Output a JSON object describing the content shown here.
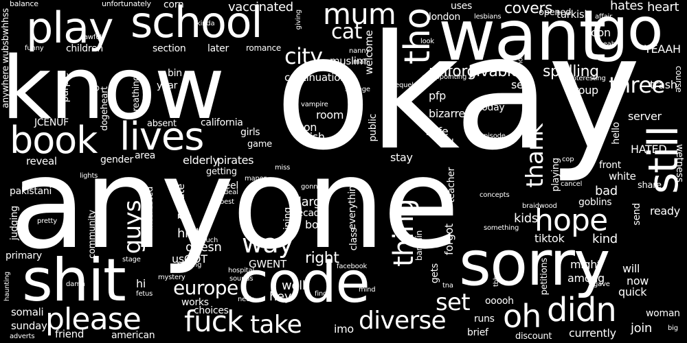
{
  "words": [
    {
      "text": "okay"
    },
    {
      "text": "anyone"
    },
    {
      "text": "know"
    },
    {
      "text": "want"
    },
    {
      "text": "go"
    },
    {
      "text": "sorry"
    },
    {
      "text": "code"
    },
    {
      "text": "shit"
    },
    {
      "text": "school"
    },
    {
      "text": "play"
    },
    {
      "text": "book"
    },
    {
      "text": "lives"
    },
    {
      "text": "still"
    },
    {
      "text": "tho"
    },
    {
      "text": "mum"
    },
    {
      "text": "cat"
    },
    {
      "text": "city"
    },
    {
      "text": "hope"
    },
    {
      "text": "three"
    },
    {
      "text": "thing"
    },
    {
      "text": "thank"
    },
    {
      "text": "guys"
    },
    {
      "text": "way"
    },
    {
      "text": "please"
    },
    {
      "text": "fuck"
    },
    {
      "text": "diverse"
    },
    {
      "text": "didn"
    },
    {
      "text": "oh"
    },
    {
      "text": "take"
    },
    {
      "text": "set"
    },
    {
      "text": "europe"
    },
    {
      "text": "unforgivable"
    },
    {
      "text": "spelling"
    },
    {
      "text": "covers"
    },
    {
      "text": "vaccinated"
    },
    {
      "text": "turkish"
    },
    {
      "text": "hates"
    },
    {
      "text": "heart"
    },
    {
      "text": "corn"
    },
    {
      "text": "london"
    },
    {
      "text": "uses"
    },
    {
      "text": "opened"
    },
    {
      "text": "soon"
    },
    {
      "text": "YEAAH"
    },
    {
      "text": "course"
    },
    {
      "text": "trash"
    },
    {
      "text": "group"
    },
    {
      "text": "server"
    },
    {
      "text": "HATED"
    },
    {
      "text": "hello"
    },
    {
      "text": "front"
    },
    {
      "text": "white"
    },
    {
      "text": "share"
    },
    {
      "text": "wetness"
    },
    {
      "text": "ready"
    },
    {
      "text": "send"
    },
    {
      "text": "kind"
    },
    {
      "text": "bad"
    },
    {
      "text": "goblins"
    },
    {
      "text": "playing"
    },
    {
      "text": "kids"
    },
    {
      "text": "tiktok"
    },
    {
      "text": "might"
    },
    {
      "text": "among"
    },
    {
      "text": "will"
    },
    {
      "text": "now"
    },
    {
      "text": "quick"
    },
    {
      "text": "woman"
    },
    {
      "text": "join"
    },
    {
      "text": "currently"
    },
    {
      "text": "discount"
    },
    {
      "text": "brief"
    },
    {
      "text": "runs"
    },
    {
      "text": "ooooh"
    },
    {
      "text": "petitions"
    },
    {
      "text": "gets"
    },
    {
      "text": "forgot"
    },
    {
      "text": "bargain"
    },
    {
      "text": "teacher"
    },
    {
      "text": "safe"
    },
    {
      "text": "old"
    },
    {
      "text": "today"
    },
    {
      "text": "bizarre"
    },
    {
      "text": "pfp"
    },
    {
      "text": "see"
    },
    {
      "text": "continuation"
    },
    {
      "text": "muslim"
    },
    {
      "text": "welcome"
    },
    {
      "text": "room"
    },
    {
      "text": "non"
    },
    {
      "text": "wish"
    },
    {
      "text": "public"
    },
    {
      "text": "stay"
    },
    {
      "text": "large"
    },
    {
      "text": "decade"
    },
    {
      "text": "boy"
    },
    {
      "text": "everything"
    },
    {
      "text": "joining"
    },
    {
      "text": "class"
    },
    {
      "text": "right"
    },
    {
      "text": "imo"
    },
    {
      "text": "well"
    },
    {
      "text": "hey"
    },
    {
      "text": "GWENT"
    },
    {
      "text": "doesn"
    },
    {
      "text": "usGOT"
    },
    {
      "text": "high"
    },
    {
      "text": "hi"
    },
    {
      "text": "works"
    },
    {
      "text": "choices"
    },
    {
      "text": "american"
    },
    {
      "text": "friend"
    },
    {
      "text": "sunday"
    },
    {
      "text": "somali"
    },
    {
      "text": "primary"
    },
    {
      "text": "judging"
    },
    {
      "text": "pakistani"
    },
    {
      "text": "reveal"
    },
    {
      "text": "gender"
    },
    {
      "text": "area"
    },
    {
      "text": "elderly"
    },
    {
      "text": "pirates"
    },
    {
      "text": "girls"
    },
    {
      "text": "game"
    },
    {
      "text": "california"
    },
    {
      "text": "absent"
    },
    {
      "text": "dogeheart"
    },
    {
      "text": "breathing"
    },
    {
      "text": "year"
    },
    {
      "text": "bin"
    },
    {
      "text": "pb"
    },
    {
      "text": "purple"
    },
    {
      "text": "children"
    },
    {
      "text": "section"
    },
    {
      "text": "later"
    },
    {
      "text": "romance"
    },
    {
      "text": "anywhere"
    },
    {
      "text": "wubsbwhhss"
    },
    {
      "text": "JCENUF"
    },
    {
      "text": "community"
    },
    {
      "text": "interested"
    },
    {
      "text": "private"
    },
    {
      "text": "getting"
    },
    {
      "text": "feel"
    },
    {
      "text": "deal"
    },
    {
      "text": "best"
    },
    {
      "text": "balance"
    },
    {
      "text": "unfortunately"
    },
    {
      "text": "kinda"
    },
    {
      "text": "giving"
    },
    {
      "text": "lesbians"
    },
    {
      "text": "affair"
    },
    {
      "text": "wouldn"
    },
    {
      "text": "yeah"
    },
    {
      "text": "look"
    },
    {
      "text": "nanny"
    },
    {
      "text": "man"
    },
    {
      "text": "awful"
    },
    {
      "text": "funny"
    },
    {
      "text": "strange"
    },
    {
      "text": "sequel"
    },
    {
      "text": "disappointing"
    },
    {
      "text": "interesting"
    },
    {
      "text": "VN"
    },
    {
      "text": "vampire"
    },
    {
      "text": "episode"
    },
    {
      "text": "cop"
    },
    {
      "text": "cancel"
    },
    {
      "text": "concepts"
    },
    {
      "text": "braidwood"
    },
    {
      "text": "something"
    },
    {
      "text": "tbh"
    },
    {
      "text": "tna"
    },
    {
      "text": "facebook"
    },
    {
      "text": "mind"
    },
    {
      "text": "find"
    },
    {
      "text": "hospital"
    },
    {
      "text": "sounds"
    },
    {
      "text": "neck"
    },
    {
      "text": "fucking"
    },
    {
      "text": "mystery"
    },
    {
      "text": "stage"
    },
    {
      "text": "much"
    },
    {
      "text": "long"
    },
    {
      "text": "pretty"
    },
    {
      "text": "lights"
    },
    {
      "text": "miss"
    },
    {
      "text": "manor"
    },
    {
      "text": "gonna"
    },
    {
      "text": "haunting"
    },
    {
      "text": "damn"
    },
    {
      "text": "fetus"
    },
    {
      "text": "adverts"
    },
    {
      "text": "gave"
    },
    {
      "text": "big"
    }
  ]
}
